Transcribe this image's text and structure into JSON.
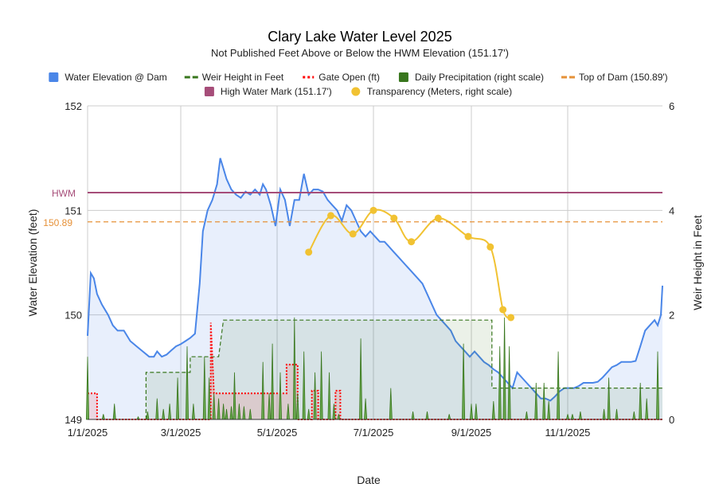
{
  "chart_data": {
    "type": "area",
    "title": "Clary Lake Water Level 2025",
    "subtitle": "Not Published Feet Above or Below the HWM Elevation (151.17')",
    "xlabel": "Date",
    "ylabel_left": "Water Elevation (feet)",
    "ylabel_right": "Weir Height in Feet",
    "x_range": [
      "2025-01-01",
      "2025-12-31"
    ],
    "x_ticks": [
      "1/1/2025",
      "3/1/2025",
      "5/1/2025",
      "7/1/2025",
      "9/1/2025",
      "11/1/2025"
    ],
    "ylim_left": [
      149,
      152
    ],
    "y_ticks_left": [
      "149",
      "150",
      "151",
      "152"
    ],
    "ylim_right": [
      0,
      6
    ],
    "y_ticks_right": [
      "0",
      "2",
      "4",
      "6"
    ],
    "grid": true,
    "legend_position": "top",
    "legend": [
      {
        "key": "elev",
        "label": "Water Elevation @ Dam",
        "color": "#4a86e8",
        "kind": "square"
      },
      {
        "key": "weir",
        "label": "Weir Height in Feet",
        "color": "#38761d",
        "kind": "dash"
      },
      {
        "key": "gate",
        "label": "Gate Open (ft)",
        "color": "#ff0000",
        "kind": "dot"
      },
      {
        "key": "precip",
        "label": "Daily Precipitation (right scale)",
        "color": "#38761d",
        "kind": "square"
      },
      {
        "key": "dam",
        "label": "Top of Dam (150.89')",
        "color": "#e69138",
        "kind": "dash"
      },
      {
        "key": "hwm",
        "label": "High Water Mark (151.17')",
        "color": "#a64d79",
        "kind": "square"
      },
      {
        "key": "transp",
        "label": "Transparency (Meters, right scale)",
        "color": "#f1c232",
        "kind": "circle"
      }
    ],
    "reference_lines": {
      "hwm": {
        "value": 151.17,
        "label": "HWM",
        "color": "#a64d79"
      },
      "top_of_dam": {
        "value": 150.89,
        "label": "150.89",
        "color": "#e69138"
      }
    },
    "series": [
      {
        "name": "Water Elevation @ Dam",
        "axis": "left",
        "style": "area",
        "color": "#4a86e8",
        "points": [
          [
            "2025-01-01",
            149.8
          ],
          [
            "2025-01-03",
            150.4
          ],
          [
            "2025-01-05",
            150.35
          ],
          [
            "2025-01-07",
            150.2
          ],
          [
            "2025-01-10",
            150.1
          ],
          [
            "2025-01-14",
            150.0
          ],
          [
            "2025-01-17",
            149.9
          ],
          [
            "2025-01-20",
            149.85
          ],
          [
            "2025-01-24",
            149.85
          ],
          [
            "2025-01-28",
            149.75
          ],
          [
            "2025-02-01",
            149.7
          ],
          [
            "2025-02-05",
            149.65
          ],
          [
            "2025-02-09",
            149.6
          ],
          [
            "2025-02-12",
            149.6
          ],
          [
            "2025-02-14",
            149.65
          ],
          [
            "2025-02-17",
            149.6
          ],
          [
            "2025-02-20",
            149.62
          ],
          [
            "2025-02-23",
            149.66
          ],
          [
            "2025-02-26",
            149.7
          ],
          [
            "2025-03-01",
            149.72
          ],
          [
            "2025-03-04",
            149.75
          ],
          [
            "2025-03-07",
            149.78
          ],
          [
            "2025-03-10",
            149.82
          ],
          [
            "2025-03-13",
            150.3
          ],
          [
            "2025-03-15",
            150.8
          ],
          [
            "2025-03-18",
            151.0
          ],
          [
            "2025-03-21",
            151.1
          ],
          [
            "2025-03-24",
            151.25
          ],
          [
            "2025-03-26",
            151.5
          ],
          [
            "2025-03-28",
            151.4
          ],
          [
            "2025-03-30",
            151.3
          ],
          [
            "2025-04-02",
            151.2
          ],
          [
            "2025-04-05",
            151.15
          ],
          [
            "2025-04-08",
            151.12
          ],
          [
            "2025-04-11",
            151.18
          ],
          [
            "2025-04-14",
            151.15
          ],
          [
            "2025-04-17",
            151.2
          ],
          [
            "2025-04-20",
            151.15
          ],
          [
            "2025-04-22",
            151.25
          ],
          [
            "2025-04-24",
            151.2
          ],
          [
            "2025-04-27",
            151.05
          ],
          [
            "2025-04-30",
            150.85
          ],
          [
            "2025-05-03",
            151.2
          ],
          [
            "2025-05-06",
            151.1
          ],
          [
            "2025-05-09",
            150.85
          ],
          [
            "2025-05-12",
            151.1
          ],
          [
            "2025-05-15",
            151.1
          ],
          [
            "2025-05-18",
            151.35
          ],
          [
            "2025-05-21",
            151.15
          ],
          [
            "2025-05-24",
            151.2
          ],
          [
            "2025-05-27",
            151.2
          ],
          [
            "2025-05-30",
            151.18
          ],
          [
            "2025-06-02",
            151.1
          ],
          [
            "2025-06-05",
            151.05
          ],
          [
            "2025-06-08",
            151.0
          ],
          [
            "2025-06-11",
            150.9
          ],
          [
            "2025-06-14",
            151.05
          ],
          [
            "2025-06-17",
            151.0
          ],
          [
            "2025-06-20",
            150.9
          ],
          [
            "2025-06-23",
            150.8
          ],
          [
            "2025-06-26",
            150.75
          ],
          [
            "2025-06-29",
            150.8
          ],
          [
            "2025-07-02",
            150.75
          ],
          [
            "2025-07-05",
            150.7
          ],
          [
            "2025-07-08",
            150.7
          ],
          [
            "2025-07-11",
            150.65
          ],
          [
            "2025-07-14",
            150.6
          ],
          [
            "2025-07-17",
            150.55
          ],
          [
            "2025-07-20",
            150.5
          ],
          [
            "2025-07-23",
            150.45
          ],
          [
            "2025-07-26",
            150.4
          ],
          [
            "2025-07-29",
            150.35
          ],
          [
            "2025-08-01",
            150.3
          ],
          [
            "2025-08-04",
            150.2
          ],
          [
            "2025-08-07",
            150.1
          ],
          [
            "2025-08-10",
            150.0
          ],
          [
            "2025-08-13",
            149.95
          ],
          [
            "2025-08-16",
            149.9
          ],
          [
            "2025-08-19",
            149.85
          ],
          [
            "2025-08-22",
            149.75
          ],
          [
            "2025-08-25",
            149.7
          ],
          [
            "2025-08-28",
            149.65
          ],
          [
            "2025-08-31",
            149.6
          ],
          [
            "2025-09-03",
            149.65
          ],
          [
            "2025-09-06",
            149.6
          ],
          [
            "2025-09-09",
            149.55
          ],
          [
            "2025-09-12",
            149.52
          ],
          [
            "2025-09-15",
            149.48
          ],
          [
            "2025-09-18",
            149.45
          ],
          [
            "2025-09-21",
            149.4
          ],
          [
            "2025-09-24",
            149.35
          ],
          [
            "2025-09-27",
            149.3
          ],
          [
            "2025-09-30",
            149.45
          ],
          [
            "2025-10-03",
            149.4
          ],
          [
            "2025-10-06",
            149.35
          ],
          [
            "2025-10-09",
            149.3
          ],
          [
            "2025-10-12",
            149.25
          ],
          [
            "2025-10-15",
            149.2
          ],
          [
            "2025-10-18",
            149.2
          ],
          [
            "2025-10-21",
            149.18
          ],
          [
            "2025-10-24",
            149.22
          ],
          [
            "2025-10-27",
            149.27
          ],
          [
            "2025-10-30",
            149.3
          ],
          [
            "2025-11-02",
            149.3
          ],
          [
            "2025-11-05",
            149.3
          ],
          [
            "2025-11-08",
            149.32
          ],
          [
            "2025-11-11",
            149.35
          ],
          [
            "2025-11-14",
            149.35
          ],
          [
            "2025-11-17",
            149.35
          ],
          [
            "2025-11-20",
            149.36
          ],
          [
            "2025-11-23",
            149.4
          ],
          [
            "2025-11-26",
            149.45
          ],
          [
            "2025-11-29",
            149.5
          ],
          [
            "2025-12-02",
            149.52
          ],
          [
            "2025-12-05",
            149.55
          ],
          [
            "2025-12-08",
            149.55
          ],
          [
            "2025-12-11",
            149.55
          ],
          [
            "2025-12-14",
            149.56
          ],
          [
            "2025-12-17",
            149.7
          ],
          [
            "2025-12-20",
            149.85
          ],
          [
            "2025-12-23",
            149.9
          ],
          [
            "2025-12-26",
            149.95
          ],
          [
            "2025-12-28",
            149.9
          ],
          [
            "2025-12-30",
            150.0
          ],
          [
            "2025-12-31",
            150.28
          ]
        ]
      },
      {
        "name": "Weir Height in Feet",
        "axis": "right",
        "style": "dashed-area",
        "color": "#38761d",
        "points": [
          [
            "2025-02-07",
            0
          ],
          [
            "2025-02-07",
            0.9
          ],
          [
            "2025-03-07",
            0.9
          ],
          [
            "2025-03-07",
            1.2
          ],
          [
            "2025-03-25",
            1.2
          ],
          [
            "2025-03-28",
            1.9
          ],
          [
            "2025-09-14",
            1.9
          ],
          [
            "2025-09-14",
            0.6
          ],
          [
            "2025-12-31",
            0.6
          ]
        ]
      },
      {
        "name": "Gate Open (ft)",
        "axis": "right",
        "style": "dotted-area",
        "color": "#ff0000",
        "points": [
          [
            "2025-01-01",
            0.5
          ],
          [
            "2025-01-07",
            0.5
          ],
          [
            "2025-01-07",
            0
          ],
          [
            "2025-03-20",
            0
          ],
          [
            "2025-03-20",
            1.85
          ],
          [
            "2025-03-22",
            0.5
          ],
          [
            "2025-05-07",
            0.5
          ],
          [
            "2025-05-07",
            1.05
          ],
          [
            "2025-05-14",
            1.05
          ],
          [
            "2025-05-14",
            0
          ],
          [
            "2025-05-23",
            0
          ],
          [
            "2025-05-23",
            0.55
          ],
          [
            "2025-05-27",
            0.55
          ],
          [
            "2025-05-27",
            0
          ],
          [
            "2025-06-07",
            0
          ],
          [
            "2025-06-07",
            0.55
          ],
          [
            "2025-06-10",
            0.55
          ],
          [
            "2025-06-10",
            0
          ],
          [
            "2025-12-31",
            0
          ]
        ]
      },
      {
        "name": "Daily Precipitation (right scale)",
        "axis": "right",
        "style": "spikes",
        "color": "#38761d",
        "points": [
          [
            "2025-01-01",
            1.2
          ],
          [
            "2025-01-11",
            0.1
          ],
          [
            "2025-01-18",
            0.3
          ],
          [
            "2025-02-02",
            0.05
          ],
          [
            "2025-02-08",
            0.15
          ],
          [
            "2025-02-14",
            0.4
          ],
          [
            "2025-02-18",
            0.2
          ],
          [
            "2025-02-22",
            0.3
          ],
          [
            "2025-02-27",
            0.8
          ],
          [
            "2025-03-05",
            1.4
          ],
          [
            "2025-03-09",
            0.3
          ],
          [
            "2025-03-16",
            1.2
          ],
          [
            "2025-03-19",
            0.8
          ],
          [
            "2025-03-22",
            0.5
          ],
          [
            "2025-03-25",
            0.4
          ],
          [
            "2025-03-28",
            0.3
          ],
          [
            "2025-03-30",
            0.2
          ],
          [
            "2025-04-02",
            0.25
          ],
          [
            "2025-04-04",
            0.9
          ],
          [
            "2025-04-07",
            0.3
          ],
          [
            "2025-04-10",
            0.25
          ],
          [
            "2025-04-14",
            0.2
          ],
          [
            "2025-04-22",
            1.1
          ],
          [
            "2025-04-26",
            0.5
          ],
          [
            "2025-04-28",
            1.45
          ],
          [
            "2025-05-03",
            0.9
          ],
          [
            "2025-05-08",
            0.3
          ],
          [
            "2025-05-12",
            1.95
          ],
          [
            "2025-05-14",
            0.5
          ],
          [
            "2025-05-18",
            1.3
          ],
          [
            "2025-05-21",
            0.2
          ],
          [
            "2025-05-25",
            0.9
          ],
          [
            "2025-05-29",
            1.3
          ],
          [
            "2025-06-03",
            0.9
          ],
          [
            "2025-06-06",
            0.3
          ],
          [
            "2025-06-09",
            0.1
          ],
          [
            "2025-06-23",
            1.55
          ],
          [
            "2025-06-26",
            0.4
          ],
          [
            "2025-07-12",
            0.6
          ],
          [
            "2025-07-26",
            0.15
          ],
          [
            "2025-08-04",
            0.15
          ],
          [
            "2025-08-18",
            0.1
          ],
          [
            "2025-08-27",
            1.45
          ],
          [
            "2025-09-01",
            0.3
          ],
          [
            "2025-09-04",
            0.3
          ],
          [
            "2025-09-15",
            0.35
          ],
          [
            "2025-09-19",
            1.4
          ],
          [
            "2025-09-22",
            1.95
          ],
          [
            "2025-09-25",
            1.4
          ],
          [
            "2025-10-06",
            0.15
          ],
          [
            "2025-10-12",
            0.7
          ],
          [
            "2025-10-17",
            0.7
          ],
          [
            "2025-10-20",
            0.35
          ],
          [
            "2025-10-26",
            1.3
          ],
          [
            "2025-11-01",
            0.1
          ],
          [
            "2025-11-04",
            0.1
          ],
          [
            "2025-11-09",
            0.15
          ],
          [
            "2025-11-24",
            0.2
          ],
          [
            "2025-11-27",
            0.8
          ],
          [
            "2025-12-02",
            0.2
          ],
          [
            "2025-12-13",
            0.15
          ],
          [
            "2025-12-17",
            0.7
          ],
          [
            "2025-12-21",
            0.4
          ],
          [
            "2025-12-28",
            1.3
          ]
        ]
      },
      {
        "name": "Transparency (Meters, right scale)",
        "axis": "right",
        "style": "smooth-line-markers",
        "color": "#f1c232",
        "points": [
          [
            "2025-05-21",
            3.2
          ],
          [
            "2025-06-04",
            3.9
          ],
          [
            "2025-06-18",
            3.55
          ],
          [
            "2025-07-01",
            4.0
          ],
          [
            "2025-07-14",
            3.85
          ],
          [
            "2025-07-25",
            3.4
          ],
          [
            "2025-08-11",
            3.85
          ],
          [
            "2025-08-30",
            3.5
          ],
          [
            "2025-09-13",
            3.3
          ],
          [
            "2025-09-21",
            2.1
          ],
          [
            "2025-09-26",
            1.95
          ]
        ]
      }
    ]
  }
}
